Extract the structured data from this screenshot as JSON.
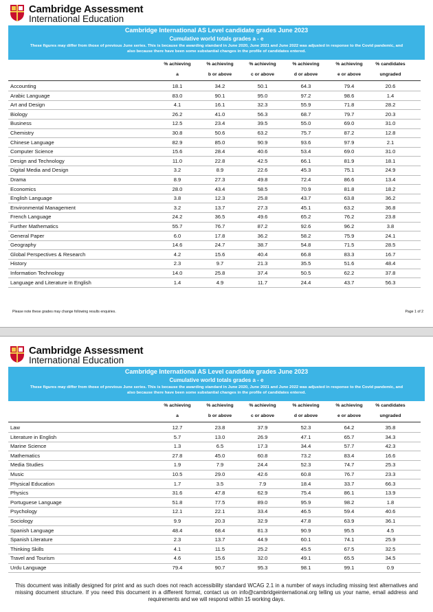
{
  "pages": [
    {
      "logo": {
        "line1": "Cambridge Assessment",
        "line2": "International Education"
      },
      "banner": {
        "title": "Cambridge International AS Level candidate grades June 2023",
        "subtitle": "Cumulative world totals grades a - e",
        "note": "These figures may differ from those of previous June series. This is because the awarding standard in June 2020, June 2021 and June 2022 was adjusted in response to the Covid pandemic, and also because there have been some substantial changes in the profile of candidates entered."
      },
      "table": {
        "header": [
          [
            "% achieving",
            "% achieving",
            "% achieving",
            "% achieving",
            "% achieving",
            "% candidates"
          ],
          [
            "a",
            "b or above",
            "c or above",
            "d or above",
            "e or above",
            "ungraded"
          ]
        ],
        "rows": [
          [
            "Accounting",
            "18.1",
            "34.2",
            "50.1",
            "64.3",
            "79.4",
            "20.6"
          ],
          [
            "Arabic Language",
            "83.0",
            "90.1",
            "95.0",
            "97.2",
            "98.6",
            "1.4"
          ],
          [
            "Art and Design",
            "4.1",
            "16.1",
            "32.3",
            "55.9",
            "71.8",
            "28.2"
          ],
          [
            "Biology",
            "26.2",
            "41.0",
            "56.3",
            "68.7",
            "79.7",
            "20.3"
          ],
          [
            "Business",
            "12.5",
            "23.4",
            "39.5",
            "55.0",
            "69.0",
            "31.0"
          ],
          [
            "Chemistry",
            "30.8",
            "50.6",
            "63.2",
            "75.7",
            "87.2",
            "12.8"
          ],
          [
            "Chinese Language",
            "82.9",
            "85.0",
            "90.9",
            "93.6",
            "97.9",
            "2.1"
          ],
          [
            "Computer Science",
            "15.6",
            "28.4",
            "40.6",
            "53.4",
            "69.0",
            "31.0"
          ],
          [
            "Design and Technology",
            "11.0",
            "22.8",
            "42.5",
            "66.1",
            "81.9",
            "18.1"
          ],
          [
            "Digital Media and Design",
            "3.2",
            "8.9",
            "22.6",
            "45.3",
            "75.1",
            "24.9"
          ],
          [
            "Drama",
            "8.9",
            "27.3",
            "49.8",
            "72.4",
            "86.6",
            "13.4"
          ],
          [
            "Economics",
            "28.0",
            "43.4",
            "58.5",
            "70.9",
            "81.8",
            "18.2"
          ],
          [
            "English Language",
            "3.8",
            "12.3",
            "25.8",
            "43.7",
            "63.8",
            "36.2"
          ],
          [
            "Environmental Management",
            "3.2",
            "13.7",
            "27.3",
            "45.1",
            "63.2",
            "36.8"
          ],
          [
            "French Language",
            "24.2",
            "36.5",
            "49.6",
            "65.2",
            "76.2",
            "23.8"
          ],
          [
            "Further Mathematics",
            "55.7",
            "76.7",
            "87.2",
            "92.6",
            "96.2",
            "3.8"
          ],
          [
            "General Paper",
            "6.0",
            "17.8",
            "36.2",
            "58.2",
            "75.9",
            "24.1"
          ],
          [
            "Geography",
            "14.6",
            "24.7",
            "38.7",
            "54.8",
            "71.5",
            "28.5"
          ],
          [
            "Global Perspectives & Research",
            "4.2",
            "15.6",
            "40.4",
            "66.8",
            "83.3",
            "16.7"
          ],
          [
            "History",
            "2.3",
            "9.7",
            "21.3",
            "35.5",
            "51.6",
            "48.4"
          ],
          [
            "Information Technology",
            "14.0",
            "25.8",
            "37.4",
            "50.5",
            "62.2",
            "37.8"
          ],
          [
            "Language and Literature in English",
            "1.4",
            "4.9",
            "11.7",
            "24.4",
            "43.7",
            "56.3"
          ]
        ]
      },
      "footer_note": "Please note these grades may change following results enquiries.",
      "page_number": "Page 1 of 2"
    },
    {
      "logo": {
        "line1": "Cambridge Assessment",
        "line2": "International Education"
      },
      "banner": {
        "title": "Cambridge International AS Level candidate grades June 2023",
        "subtitle": "Cumulative world totals grades a - e",
        "note": "These figures may differ from those of previous June series. This is because the awarding standard in June 2020, June 2021 and June 2022 was adjusted in response to the Covid pandemic, and also because there have been some substantial changes in the profile of candidates entered."
      },
      "table": {
        "header": [
          [
            "% achieving",
            "% achieving",
            "% achieving",
            "% achieving",
            "% achieving",
            "% candidates"
          ],
          [
            "a",
            "b or above",
            "c or above",
            "d or above",
            "e or above",
            "ungraded"
          ]
        ],
        "rows": [
          [
            "Law",
            "12.7",
            "23.8",
            "37.9",
            "52.3",
            "64.2",
            "35.8"
          ],
          [
            "Literature in English",
            "5.7",
            "13.0",
            "26.9",
            "47.1",
            "65.7",
            "34.3"
          ],
          [
            "Marine Science",
            "1.3",
            "6.5",
            "17.3",
            "34.4",
            "57.7",
            "42.3"
          ],
          [
            "Mathematics",
            "27.8",
            "45.0",
            "60.8",
            "73.2",
            "83.4",
            "16.6"
          ],
          [
            "Media Studies",
            "1.9",
            "7.9",
            "24.4",
            "52.3",
            "74.7",
            "25.3"
          ],
          [
            "Music",
            "10.5",
            "29.0",
            "42.6",
            "60.8",
            "76.7",
            "23.3"
          ],
          [
            "Physical Education",
            "1.7",
            "3.5",
            "7.9",
            "18.4",
            "33.7",
            "66.3"
          ],
          [
            "Physics",
            "31.6",
            "47.8",
            "62.9",
            "75.4",
            "86.1",
            "13.9"
          ],
          [
            "Portuguese Language",
            "51.8",
            "77.5",
            "89.0",
            "95.9",
            "98.2",
            "1.8"
          ],
          [
            "Psychology",
            "12.1",
            "22.1",
            "33.4",
            "46.5",
            "59.4",
            "40.6"
          ],
          [
            "Sociology",
            "9.9",
            "20.3",
            "32.9",
            "47.8",
            "63.9",
            "36.1"
          ],
          [
            "Spanish Language",
            "48.4",
            "68.4",
            "81.3",
            "90.9",
            "95.5",
            "4.5"
          ],
          [
            "Spanish Literature",
            "2.3",
            "13.7",
            "44.9",
            "60.1",
            "74.1",
            "25.9"
          ],
          [
            "Thinking Skills",
            "4.1",
            "11.5",
            "25.2",
            "45.5",
            "67.5",
            "32.5"
          ],
          [
            "Travel and Tourism",
            "4.6",
            "15.6",
            "32.0",
            "49.1",
            "65.5",
            "34.5"
          ],
          [
            "Urdu Language",
            "79.4",
            "90.7",
            "95.3",
            "98.1",
            "99.1",
            "0.9"
          ]
        ]
      }
    }
  ],
  "accessibility_note": "This document was initially designed for print and as such does not reach accessibility standard WCAG 2.1 in a number of ways including missing text alternatives and missing document structure. If you need this document in a different format, contact us on info@cambridgeinternational.org telling us your name, email address and requirements and we will respond within 15 working days."
}
